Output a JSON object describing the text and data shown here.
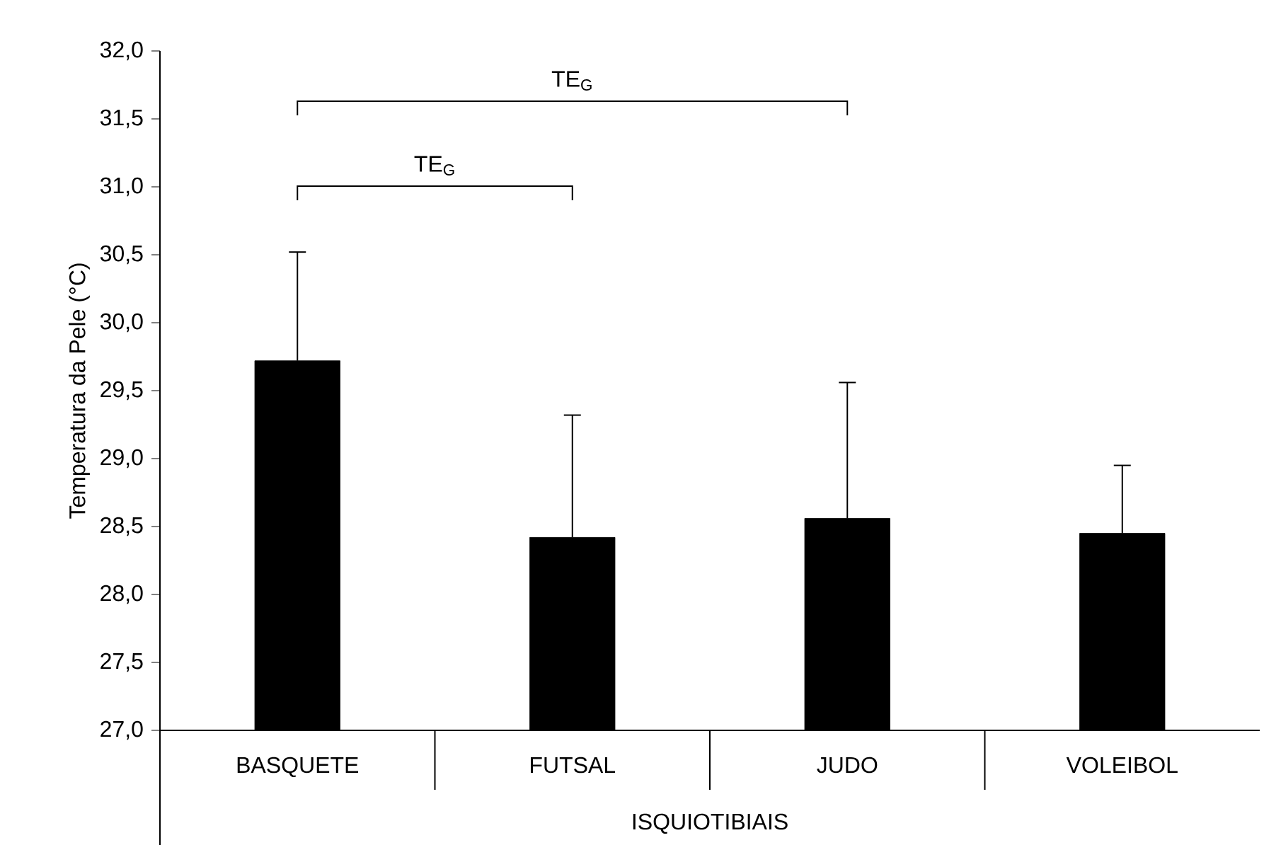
{
  "chart_data": {
    "type": "bar",
    "categories": [
      "BASQUETE",
      "FUTSAL",
      "JUDO",
      "VOLEIBOL"
    ],
    "values": [
      29.72,
      28.42,
      28.56,
      28.45
    ],
    "errors": [
      0.8,
      0.9,
      1.0,
      0.5
    ],
    "color": "#000000",
    "xlabel": "ISQUIOTIBIAIS",
    "ylabel": "Temperatura da Pele (°C)",
    "ylim": [
      27,
      32
    ],
    "yticks": [
      {
        "value": 27,
        "label": "27,0"
      },
      {
        "value": 27.5,
        "label": "27,5"
      },
      {
        "value": 28,
        "label": "28,0"
      },
      {
        "value": 28.5,
        "label": "28,5"
      },
      {
        "value": 29,
        "label": "29,0"
      },
      {
        "value": 29.5,
        "label": "29,5"
      },
      {
        "value": 30,
        "label": "30,0"
      },
      {
        "value": 30.5,
        "label": "30,5"
      },
      {
        "value": 31,
        "label": "31,0"
      },
      {
        "value": 31.5,
        "label": "31,5"
      },
      {
        "value": 32,
        "label": "32,0"
      }
    ],
    "annotations": [
      "TE$_{G}$",
      "TE$_{G}$"
    ]
  }
}
